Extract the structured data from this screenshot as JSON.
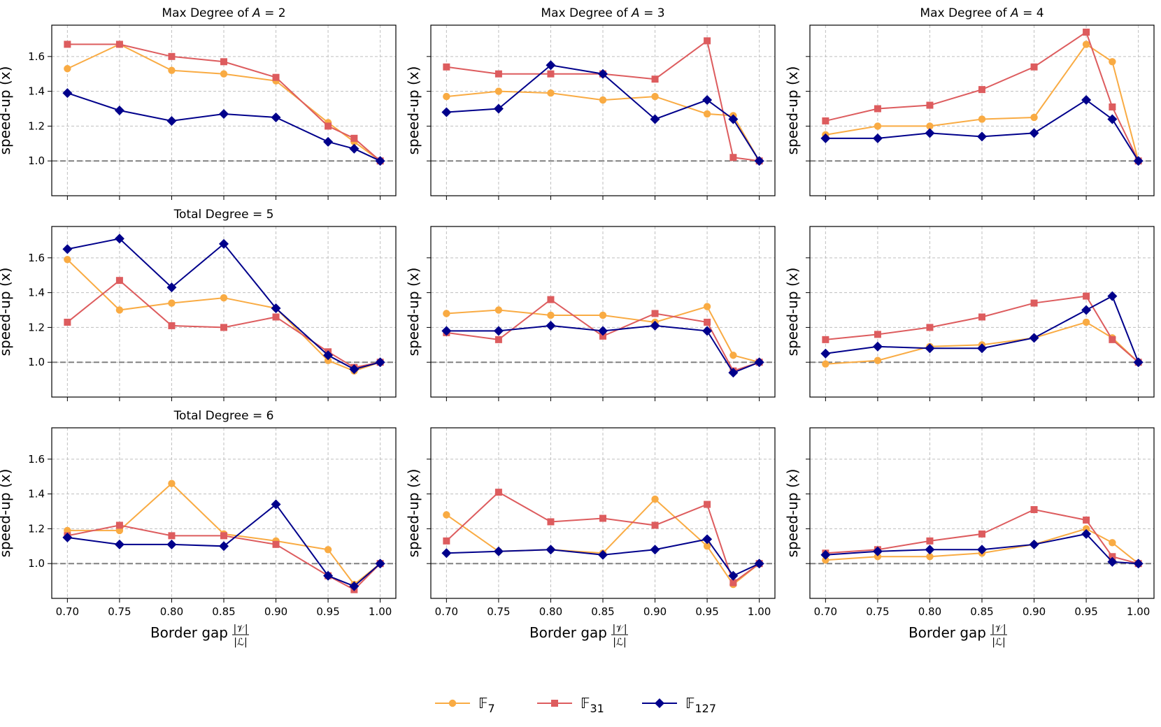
{
  "colors": {
    "F7": "#f9ab43",
    "F31": "#dd5c5e",
    "F127": "#00008b",
    "grid": "#bfbfbf",
    "baseline": "#808080",
    "axis": "#000000"
  },
  "legend": {
    "placement": "bottom-center",
    "items": [
      {
        "key": "F7",
        "label": "𝔽",
        "sub": "7",
        "marker": "circle"
      },
      {
        "key": "F31",
        "label": "𝔽",
        "sub": "31",
        "marker": "square"
      },
      {
        "key": "F127",
        "label": "𝔽",
        "sub": "127",
        "marker": "diamond"
      }
    ]
  },
  "xlabel": {
    "text": "Border gap",
    "num": "|𝒱|",
    "den": "|ℒ|"
  },
  "ylabel": "speed-up (x)",
  "chart_data": [
    {
      "type": "line",
      "row": 0,
      "col": 0,
      "title": "Max Degree of ",
      "title_var": "A",
      "title_suffix": " = 2",
      "x": [
        0.7,
        0.75,
        0.8,
        0.85,
        0.9,
        0.95,
        0.975,
        1.0
      ],
      "ylim": [
        0.8,
        1.78
      ],
      "baseline": 1.0,
      "series": [
        {
          "name": "F7",
          "values": [
            1.53,
            1.67,
            1.52,
            1.5,
            1.46,
            1.22,
            1.11,
            1.0
          ]
        },
        {
          "name": "F31",
          "values": [
            1.67,
            1.67,
            1.6,
            1.57,
            1.48,
            1.2,
            1.13,
            1.0
          ]
        },
        {
          "name": "F127",
          "values": [
            1.39,
            1.29,
            1.23,
            1.27,
            1.25,
            1.11,
            1.07,
            1.0
          ]
        }
      ]
    },
    {
      "type": "line",
      "row": 0,
      "col": 1,
      "title": "Max Degree of ",
      "title_var": "A",
      "title_suffix": " = 3",
      "x": [
        0.7,
        0.75,
        0.8,
        0.85,
        0.9,
        0.95,
        0.975,
        1.0
      ],
      "ylim": [
        0.8,
        1.78
      ],
      "baseline": 1.0,
      "series": [
        {
          "name": "F7",
          "values": [
            1.37,
            1.4,
            1.39,
            1.35,
            1.37,
            1.27,
            1.26,
            1.0
          ]
        },
        {
          "name": "F31",
          "values": [
            1.54,
            1.5,
            1.5,
            1.5,
            1.47,
            1.69,
            1.02,
            1.0
          ]
        },
        {
          "name": "F127",
          "values": [
            1.28,
            1.3,
            1.55,
            1.5,
            1.24,
            1.35,
            1.24,
            1.0
          ]
        }
      ]
    },
    {
      "type": "line",
      "row": 0,
      "col": 2,
      "title": "Max Degree of ",
      "title_var": "A",
      "title_suffix": " = 4",
      "x": [
        0.7,
        0.75,
        0.8,
        0.85,
        0.9,
        0.95,
        0.975,
        1.0
      ],
      "ylim": [
        0.8,
        1.78
      ],
      "baseline": 1.0,
      "series": [
        {
          "name": "F7",
          "values": [
            1.15,
            1.2,
            1.2,
            1.24,
            1.25,
            1.67,
            1.57,
            1.0
          ]
        },
        {
          "name": "F31",
          "values": [
            1.23,
            1.3,
            1.32,
            1.41,
            1.54,
            1.74,
            1.31,
            1.0
          ]
        },
        {
          "name": "F127",
          "values": [
            1.13,
            1.13,
            1.16,
            1.14,
            1.16,
            1.35,
            1.24,
            1.0
          ]
        }
      ]
    },
    {
      "type": "line",
      "row": 1,
      "col": 0,
      "title": "Total Degree = 5",
      "title_var": "",
      "title_suffix": "",
      "x": [
        0.7,
        0.75,
        0.8,
        0.85,
        0.9,
        0.95,
        0.975,
        1.0
      ],
      "ylim": [
        0.8,
        1.78
      ],
      "baseline": 1.0,
      "series": [
        {
          "name": "F7",
          "values": [
            1.59,
            1.3,
            1.34,
            1.37,
            1.31,
            1.01,
            0.95,
            1.0
          ]
        },
        {
          "name": "F31",
          "values": [
            1.23,
            1.47,
            1.21,
            1.2,
            1.26,
            1.06,
            0.97,
            1.0
          ]
        },
        {
          "name": "F127",
          "values": [
            1.65,
            1.71,
            1.43,
            1.68,
            1.31,
            1.04,
            0.96,
            1.0
          ]
        }
      ]
    },
    {
      "type": "line",
      "row": 1,
      "col": 1,
      "title": "",
      "title_var": "",
      "title_suffix": "",
      "x": [
        0.7,
        0.75,
        0.8,
        0.85,
        0.9,
        0.95,
        0.975,
        1.0
      ],
      "ylim": [
        0.8,
        1.78
      ],
      "baseline": 1.0,
      "series": [
        {
          "name": "F7",
          "values": [
            1.28,
            1.3,
            1.27,
            1.27,
            1.23,
            1.32,
            1.04,
            1.0
          ]
        },
        {
          "name": "F31",
          "values": [
            1.17,
            1.13,
            1.36,
            1.15,
            1.28,
            1.23,
            0.95,
            1.0
          ]
        },
        {
          "name": "F127",
          "values": [
            1.18,
            1.18,
            1.21,
            1.18,
            1.21,
            1.18,
            0.94,
            1.0
          ]
        }
      ]
    },
    {
      "type": "line",
      "row": 1,
      "col": 2,
      "title": "",
      "title_var": "",
      "title_suffix": "",
      "x": [
        0.7,
        0.75,
        0.8,
        0.85,
        0.9,
        0.95,
        0.975,
        1.0
      ],
      "ylim": [
        0.8,
        1.78
      ],
      "baseline": 1.0,
      "series": [
        {
          "name": "F7",
          "values": [
            0.99,
            1.01,
            1.09,
            1.1,
            1.14,
            1.23,
            1.14,
            1.0
          ]
        },
        {
          "name": "F31",
          "values": [
            1.13,
            1.16,
            1.2,
            1.26,
            1.34,
            1.38,
            1.13,
            1.0
          ]
        },
        {
          "name": "F127",
          "values": [
            1.05,
            1.09,
            1.08,
            1.08,
            1.14,
            1.3,
            1.38,
            1.0
          ]
        }
      ]
    },
    {
      "type": "line",
      "row": 2,
      "col": 0,
      "title": "Total Degree = 6",
      "title_var": "",
      "title_suffix": "",
      "x": [
        0.7,
        0.75,
        0.8,
        0.85,
        0.9,
        0.95,
        0.975,
        1.0
      ],
      "ylim": [
        0.8,
        1.78
      ],
      "baseline": 1.0,
      "series": [
        {
          "name": "F7",
          "values": [
            1.19,
            1.19,
            1.46,
            1.17,
            1.13,
            1.08,
            0.88,
            1.0
          ]
        },
        {
          "name": "F31",
          "values": [
            1.16,
            1.22,
            1.16,
            1.16,
            1.11,
            0.93,
            0.85,
            1.0
          ]
        },
        {
          "name": "F127",
          "values": [
            1.15,
            1.11,
            1.11,
            1.1,
            1.34,
            0.93,
            0.87,
            1.0
          ]
        }
      ]
    },
    {
      "type": "line",
      "row": 2,
      "col": 1,
      "title": "",
      "title_var": "",
      "title_suffix": "",
      "x": [
        0.7,
        0.75,
        0.8,
        0.85,
        0.9,
        0.95,
        0.975,
        1.0
      ],
      "ylim": [
        0.8,
        1.78
      ],
      "baseline": 1.0,
      "series": [
        {
          "name": "F7",
          "values": [
            1.28,
            1.07,
            1.08,
            1.06,
            1.37,
            1.1,
            0.88,
            1.0
          ]
        },
        {
          "name": "F31",
          "values": [
            1.13,
            1.41,
            1.24,
            1.26,
            1.22,
            1.34,
            0.89,
            1.0
          ]
        },
        {
          "name": "F127",
          "values": [
            1.06,
            1.07,
            1.08,
            1.05,
            1.08,
            1.14,
            0.93,
            1.0
          ]
        }
      ]
    },
    {
      "type": "line",
      "row": 2,
      "col": 2,
      "title": "",
      "title_var": "",
      "title_suffix": "",
      "x": [
        0.7,
        0.75,
        0.8,
        0.85,
        0.9,
        0.95,
        0.975,
        1.0
      ],
      "ylim": [
        0.8,
        1.78
      ],
      "baseline": 1.0,
      "series": [
        {
          "name": "F7",
          "values": [
            1.02,
            1.04,
            1.04,
            1.06,
            1.11,
            1.2,
            1.12,
            1.0
          ]
        },
        {
          "name": "F31",
          "values": [
            1.06,
            1.08,
            1.13,
            1.17,
            1.31,
            1.25,
            1.04,
            1.0
          ]
        },
        {
          "name": "F127",
          "values": [
            1.05,
            1.07,
            1.08,
            1.08,
            1.11,
            1.17,
            1.01,
            1.0
          ]
        }
      ]
    }
  ],
  "axes": {
    "yticks": [
      1.0,
      1.2,
      1.4,
      1.6
    ],
    "ytick_labels": [
      "1.0",
      "1.2",
      "1.4",
      "1.6"
    ],
    "xticks": [
      0.7,
      0.75,
      0.8,
      0.85,
      0.9,
      0.95,
      1.0
    ],
    "xtick_labels": [
      "0.70",
      "0.75",
      "0.80",
      "0.85",
      "0.90",
      "0.95",
      "1.00"
    ],
    "xlim": [
      0.685,
      1.015
    ],
    "grid": true
  }
}
